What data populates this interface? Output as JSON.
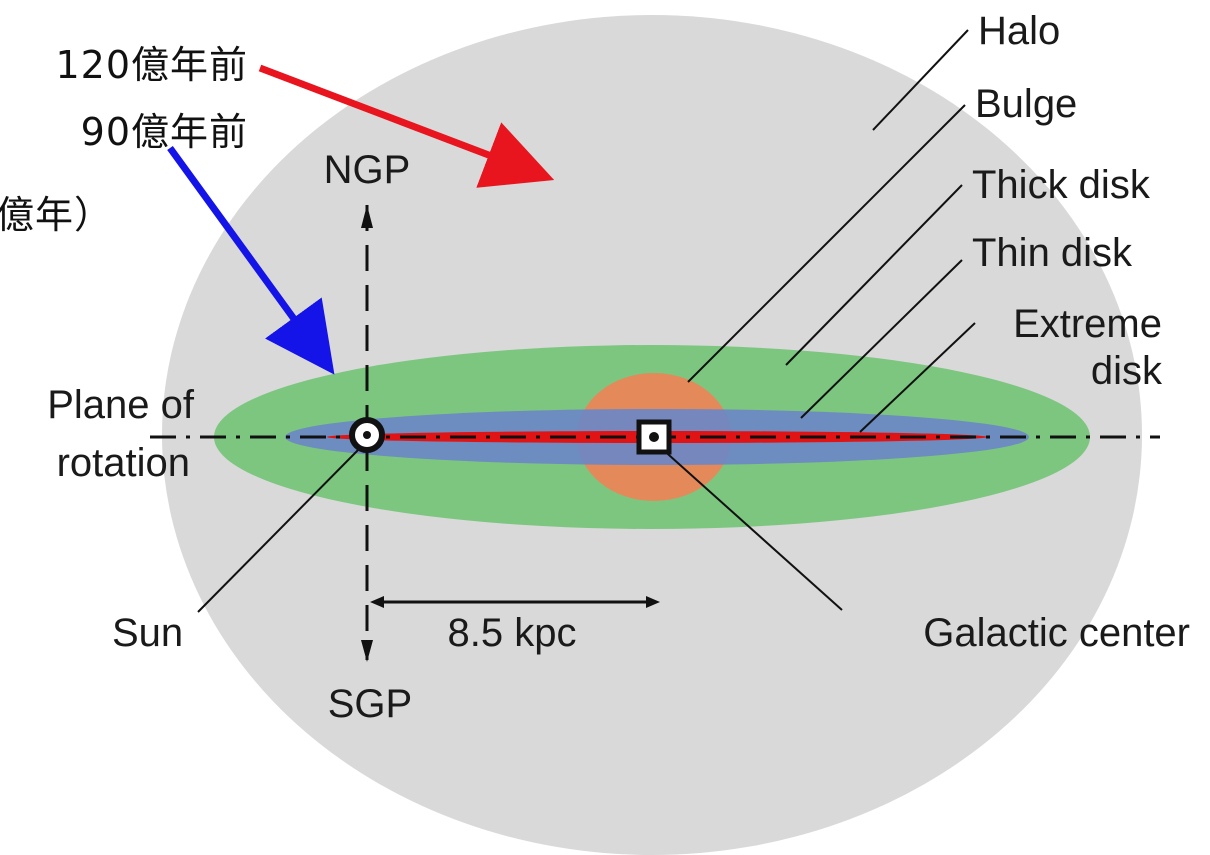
{
  "annotations": {
    "arrow_red_label": "120億年前",
    "arrow_blue_label": "90億年前",
    "partial_label": "億年）"
  },
  "components": {
    "halo": "Halo",
    "bulge": "Bulge",
    "thick_disk": "Thick disk",
    "thin_disk": "Thin disk",
    "extreme_disk_line1": "Extreme",
    "extreme_disk_line2": "disk"
  },
  "axes": {
    "ngp": "NGP",
    "sgp": "SGP",
    "plane_line1": "Plane of",
    "plane_line2": "rotation"
  },
  "markers": {
    "sun": "Sun",
    "galactic_center": "Galactic center",
    "distance": "8.5 kpc"
  },
  "colors": {
    "halo": "#d9d9d9",
    "thick_disk": "#7dc680",
    "thin_disk": "#6b87c4",
    "bulge": "#e48a5a",
    "extreme_disk": "#e01414",
    "arrow_red": "#e8141e",
    "arrow_blue": "#1414e8"
  },
  "icons": {
    "sun_symbol": "circled-dot-icon",
    "center_symbol": "squared-dot-icon"
  }
}
